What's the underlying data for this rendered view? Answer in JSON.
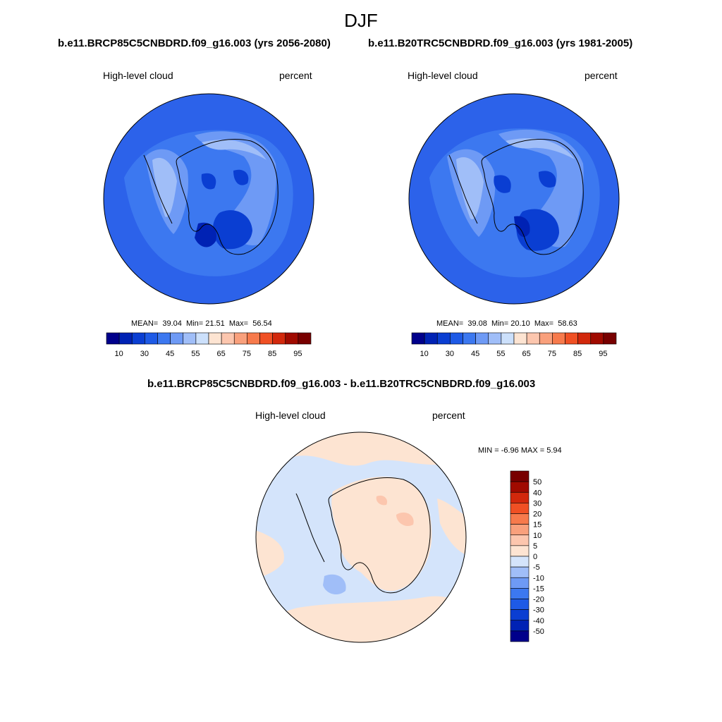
{
  "season": "DJF",
  "panels": [
    {
      "title": "b.e11.BRCP85C5CNBDRD.f09_g16.003 (yrs 2056-2080)",
      "variable": "High-level cloud",
      "units": "percent",
      "stats": {
        "mean_label": "MEAN=",
        "mean": "39.04",
        "min_label": "Min=",
        "min": "21.51",
        "max_label": "Max=",
        "max": "56.54"
      }
    },
    {
      "title": "b.e11.B20TRC5CNBDRD.f09_g16.003 (yrs 1981-2005)",
      "variable": "High-level cloud",
      "units": "percent",
      "stats": {
        "mean_label": "MEAN=",
        "mean": "39.08",
        "min_label": "Min=",
        "min": "20.10",
        "max_label": "Max=",
        "max": "58.63"
      }
    }
  ],
  "diff_panel": {
    "title": "b.e11.BRCP85C5CNBDRD.f09_g16.003 - b.e11.B20TRC5CNBDRD.f09_g16.003",
    "variable": "High-level cloud",
    "units": "percent",
    "stats_text": "MIN =  -6.96 MAX =   5.94"
  },
  "colorbar_abs": {
    "colors": [
      "#00008b",
      "#0022b4",
      "#0a3ed2",
      "#1e5ae6",
      "#3c78f0",
      "#6e9af5",
      "#a0bef8",
      "#cce0fb",
      "#fde4d2",
      "#fcc6ae",
      "#f9a07c",
      "#f77a4c",
      "#f05024",
      "#d2280c",
      "#a00a00",
      "#780000"
    ],
    "tick_labels": [
      "10",
      "30",
      "45",
      "55",
      "65",
      "75",
      "85",
      "95"
    ]
  },
  "colorbar_diff": {
    "colors": [
      "#00008b",
      "#0022b4",
      "#0a3ed2",
      "#1e5ae6",
      "#3c78f0",
      "#6e9af5",
      "#a0bef8",
      "#d4e4fb",
      "#fde4d2",
      "#fcc6ae",
      "#f9a07c",
      "#f77a4c",
      "#f05024",
      "#d2280c",
      "#a00a00",
      "#780000"
    ],
    "tick_labels": [
      "50",
      "40",
      "30",
      "20",
      "15",
      "10",
      "5",
      "0",
      "-5",
      "-10",
      "-15",
      "-20",
      "-30",
      "-40",
      "-50"
    ]
  },
  "map_colors": {
    "ocean_abs": "#2c62ea",
    "mid_abs": "#3c78f0",
    "light_abs": "#6e9af5",
    "pale_abs": "#a0bef8",
    "dark_abs": "#0a3ed2",
    "darker_abs": "#0022b4",
    "diff_neg": "#d4e4fb",
    "diff_pos": "#fde4d2",
    "diff_pos_strong": "#fcc6ae",
    "diff_neg_strong": "#a0bef8"
  }
}
